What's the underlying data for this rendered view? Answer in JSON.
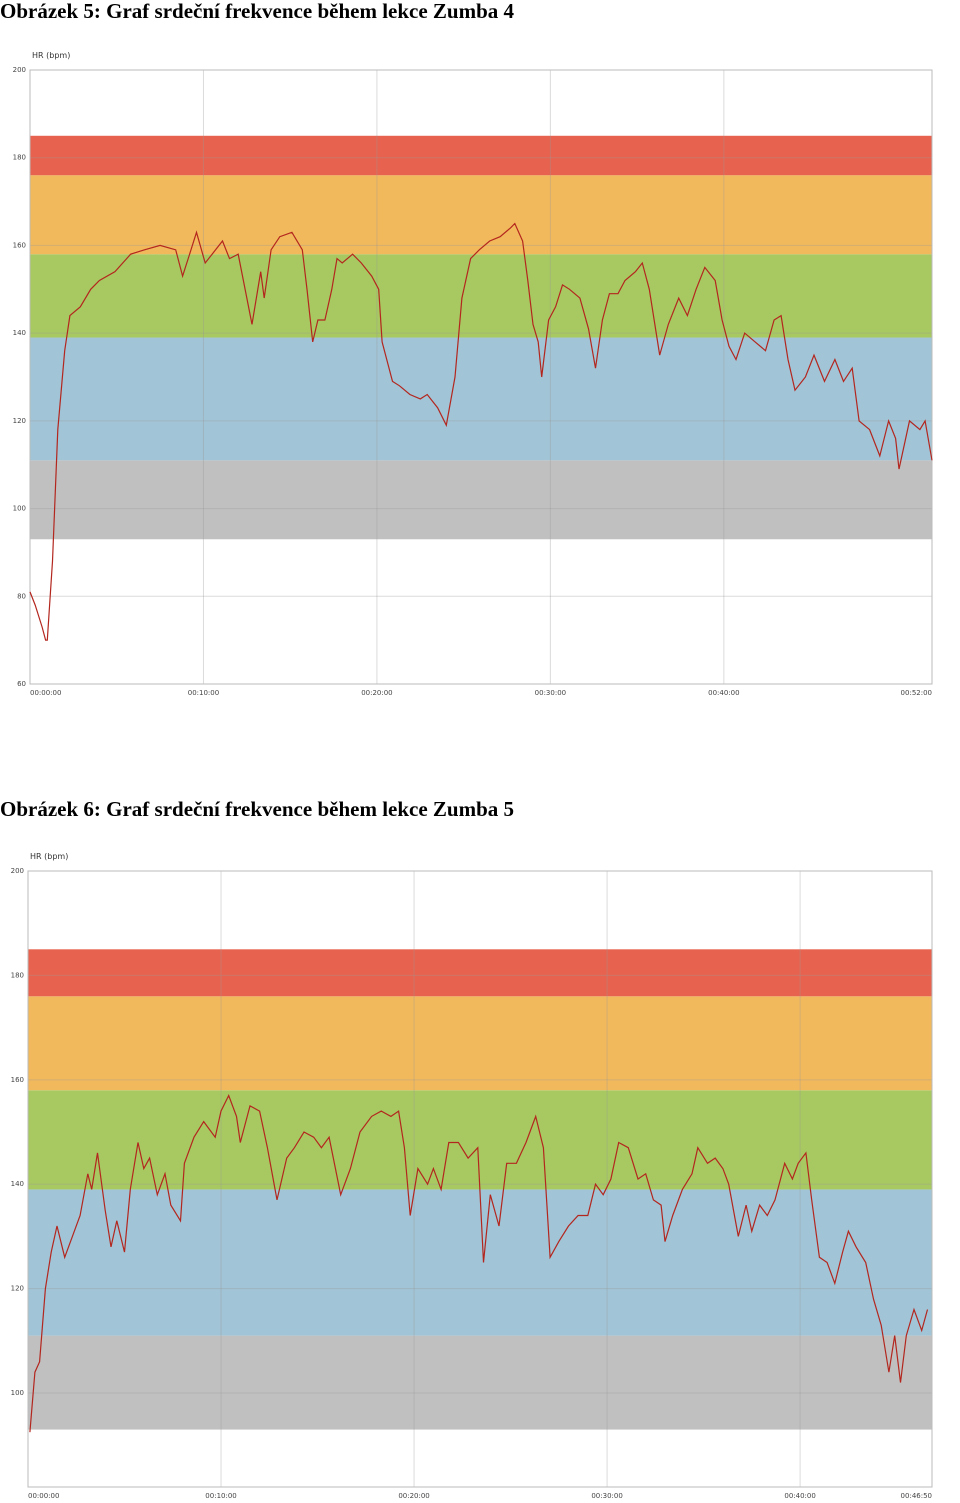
{
  "chart_data": [
    {
      "type": "line",
      "title": "Obrázek 5: Graf srdeční frekvence během lekce Zumba 4",
      "y_label": "HR (bpm)",
      "xlim": [
        0,
        52
      ],
      "ylim": [
        60,
        200
      ],
      "xticks": [
        {
          "value": 0,
          "label": "00:00:00"
        },
        {
          "value": 10,
          "label": "00:10:00"
        },
        {
          "value": 20,
          "label": "00:20:00"
        },
        {
          "value": 30,
          "label": "00:30:00"
        },
        {
          "value": 40,
          "label": "00:40:00"
        },
        {
          "value": 52,
          "label": "00:52:00"
        }
      ],
      "yticks": [
        60,
        80,
        100,
        120,
        140,
        160,
        180,
        200
      ],
      "grid": true,
      "bands": [
        {
          "from": 93,
          "to": 111,
          "color": "#c0c0c0"
        },
        {
          "from": 111,
          "to": 139,
          "color": "#a1c4d6"
        },
        {
          "from": 139,
          "to": 158,
          "color": "#a8c961"
        },
        {
          "from": 158,
          "to": 176,
          "color": "#f2b95c"
        },
        {
          "from": 176,
          "to": 185,
          "color": "#e8634f"
        }
      ],
      "x": [
        0,
        0.3,
        0.7,
        0.9,
        1.0,
        1.3,
        1.6,
        2.0,
        2.3,
        2.9,
        3.5,
        4.0,
        4.9,
        5.8,
        6.6,
        7.5,
        8.4,
        8.8,
        9.2,
        9.6,
        10.1,
        10.7,
        11.1,
        11.5,
        12.0,
        12.4,
        12.8,
        13.3,
        13.5,
        13.9,
        14.4,
        15.1,
        15.7,
        15.97,
        16.3,
        16.6,
        17.0,
        17.4,
        17.7,
        18.0,
        18.6,
        19.1,
        19.7,
        20.1,
        20.3,
        20.9,
        21.3,
        21.9,
        22.5,
        22.9,
        23.5,
        24.0,
        24.5,
        24.9,
        25.4,
        25.9,
        26.5,
        27.1,
        27.7,
        27.95,
        28.4,
        28.7,
        29.0,
        29.3,
        29.5,
        29.9,
        30.3,
        30.7,
        31.1,
        31.7,
        32.2,
        32.6,
        33.0,
        33.4,
        33.9,
        34.3,
        34.9,
        35.3,
        35.7,
        36.3,
        36.8,
        37.4,
        37.9,
        38.4,
        38.9,
        39.5,
        39.9,
        40.3,
        40.7,
        41.2,
        41.8,
        42.4,
        42.9,
        43.3,
        43.7,
        44.1,
        44.7,
        45.2,
        45.8,
        46.4,
        46.9,
        47.4,
        47.8,
        48.4,
        48.99,
        49.5,
        49.9,
        50.1,
        50.7,
        51.3,
        51.6,
        52.0
      ],
      "series": [
        {
          "color": "#b3261e",
          "values": [
            81,
            78,
            73,
            70,
            70,
            88,
            118,
            136,
            144,
            146,
            150,
            152,
            154,
            158,
            159,
            160,
            159,
            153,
            158,
            163,
            156,
            159,
            161,
            157,
            158,
            150,
            142,
            154,
            148,
            159,
            162,
            163,
            159,
            150,
            138,
            143,
            143,
            150,
            157,
            156,
            158,
            156,
            153,
            150,
            138,
            129,
            128,
            126,
            125,
            126,
            123,
            119,
            130,
            148,
            157,
            159,
            161,
            162,
            164,
            165,
            161,
            152,
            142,
            138,
            130,
            143,
            146,
            151,
            150,
            148,
            141,
            132,
            143,
            149,
            149,
            152,
            154,
            156,
            150,
            135,
            142,
            148,
            144,
            150,
            155,
            152,
            143,
            137,
            134,
            140,
            138,
            136,
            143,
            144,
            134,
            127,
            130,
            135,
            129,
            134,
            129,
            132,
            120,
            118,
            112,
            120,
            116,
            109,
            120,
            118,
            120,
            111
          ]
        }
      ]
    },
    {
      "type": "line",
      "title": "Obrázek 6: Graf srdeční frekvence během lekce Zumba 5",
      "y_label": "HR (bpm)",
      "xlim": [
        0,
        46.833
      ],
      "ylim": [
        82,
        200
      ],
      "xticks": [
        {
          "value": 0,
          "label": "00:00:00"
        },
        {
          "value": 10,
          "label": "00:10:00"
        },
        {
          "value": 20,
          "label": "00:20:00"
        },
        {
          "value": 30,
          "label": "00:30:00"
        },
        {
          "value": 40,
          "label": "00:40:00"
        },
        {
          "value": 46.833,
          "label": "00:46:50"
        }
      ],
      "yticks": [
        100,
        120,
        140,
        160,
        180,
        200
      ],
      "grid": true,
      "bands": [
        {
          "from": 93,
          "to": 111,
          "color": "#c0c0c0"
        },
        {
          "from": 111,
          "to": 139,
          "color": "#a1c4d6"
        },
        {
          "from": 139,
          "to": 158,
          "color": "#a8c961"
        },
        {
          "from": 158,
          "to": 176,
          "color": "#f2b95c"
        },
        {
          "from": 176,
          "to": 185,
          "color": "#e8634f"
        }
      ],
      "x": [
        0.1,
        0.36,
        0.6,
        0.9,
        1.2,
        1.5,
        1.9,
        2.3,
        2.7,
        3.1,
        3.3,
        3.6,
        4.0,
        4.3,
        4.6,
        5.0,
        5.3,
        5.7,
        6.0,
        6.3,
        6.7,
        7.1,
        7.4,
        7.9,
        8.1,
        8.6,
        9.1,
        9.7,
        10.0,
        10.4,
        10.8,
        11.0,
        11.5,
        12.0,
        12.4,
        12.9,
        13.4,
        13.8,
        14.3,
        14.8,
        15.2,
        15.6,
        16.2,
        16.7,
        17.2,
        17.8,
        18.3,
        18.8,
        19.2,
        19.5,
        19.8,
        20.2,
        20.7,
        21.0,
        21.4,
        21.8,
        22.3,
        22.8,
        23.3,
        23.6,
        23.95,
        24.4,
        24.8,
        25.3,
        25.8,
        26.3,
        26.7,
        27.05,
        27.5,
        28.0,
        28.5,
        29.0,
        29.4,
        29.8,
        30.2,
        30.6,
        31.1,
        31.6,
        32.0,
        32.4,
        32.8,
        33.0,
        33.4,
        33.9,
        34.4,
        34.7,
        35.2,
        35.6,
        36.0,
        36.3,
        36.8,
        37.2,
        37.5,
        37.9,
        38.3,
        38.7,
        39.2,
        39.6,
        39.9,
        40.3,
        40.6,
        41.0,
        41.4,
        41.8,
        42.2,
        42.5,
        42.9,
        43.4,
        43.8,
        44.2,
        44.6,
        44.9,
        45.2,
        45.5,
        45.9,
        46.3,
        46.6
      ],
      "series": [
        {
          "color": "#b3261e",
          "values": [
            92.5,
            104,
            106,
            120,
            127,
            132,
            126,
            130,
            134,
            142,
            139,
            146,
            135,
            128,
            133,
            127,
            139,
            148,
            143,
            145,
            138,
            142,
            136,
            133,
            144,
            149,
            152,
            149,
            154,
            157,
            153,
            148,
            155,
            154,
            147,
            137,
            145,
            147,
            150,
            149,
            147,
            149,
            138,
            143,
            150,
            153,
            154,
            153,
            154,
            147,
            134,
            143,
            140,
            143,
            139,
            148,
            148,
            145,
            147,
            125,
            138,
            132,
            144,
            144,
            148,
            153,
            147,
            126,
            129,
            132,
            134,
            134,
            140,
            138,
            141,
            148,
            147,
            141,
            142,
            137,
            136,
            129,
            134,
            139,
            142,
            147,
            144,
            145,
            143,
            140,
            130,
            136,
            131,
            136,
            134,
            137,
            144,
            141,
            144,
            146,
            137,
            126,
            125,
            121,
            127,
            131,
            128,
            125,
            118,
            113,
            104,
            111,
            102,
            111,
            116,
            112,
            116
          ]
        }
      ]
    }
  ]
}
